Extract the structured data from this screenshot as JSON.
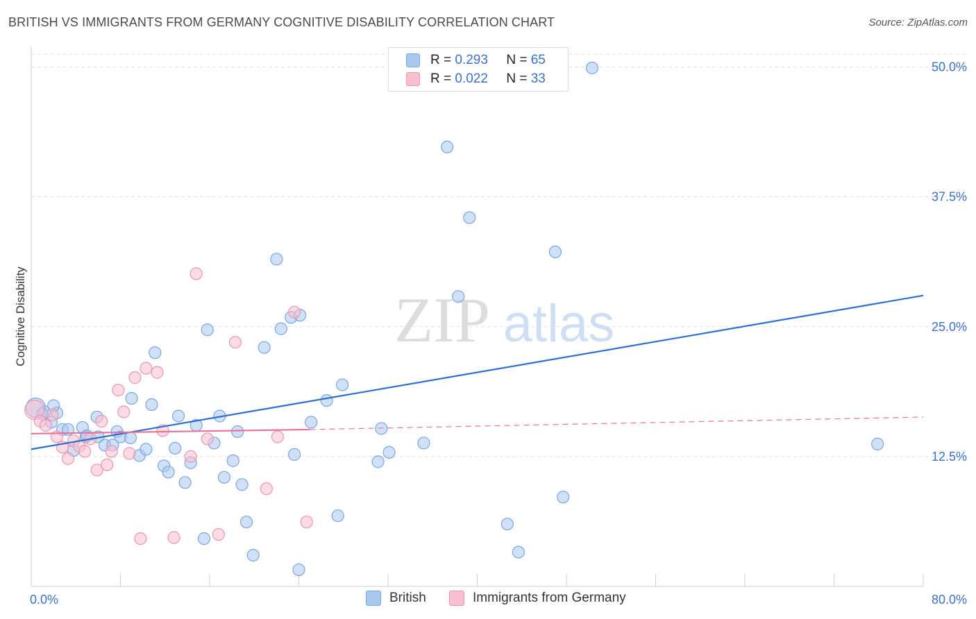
{
  "header": {
    "title": "BRITISH VS IMMIGRANTS FROM GERMANY COGNITIVE DISABILITY CORRELATION CHART",
    "source": "Source: ZipAtlas.com"
  },
  "legend_stats": [
    {
      "r_label": "R = ",
      "r_value": "0.293",
      "n_label": "N = ",
      "n_value": "65"
    },
    {
      "r_label": "R = ",
      "r_value": "0.022",
      "n_label": "N = ",
      "n_value": "33"
    }
  ],
  "watermark": {
    "zip": "ZIP",
    "atlas": "atlas"
  },
  "colors": {
    "british_fill": "#a9c8f0",
    "british_stroke": "#7aa6e0",
    "british_line": "#2a6fd0",
    "germany_fill": "#f7bfd0",
    "germany_stroke": "#ee93b0",
    "germany_line": "#e8709a",
    "axis_label": "#3a70c8",
    "grid": "#dde1e6"
  },
  "chart_data": {
    "type": "scatter",
    "title": "BRITISH VS IMMIGRANTS FROM GERMANY COGNITIVE DISABILITY CORRELATION CHART",
    "xlabel": "",
    "ylabel": "Cognitive Disability",
    "xlim": [
      0,
      80
    ],
    "ylim": [
      0,
      50
    ],
    "x_tick_labels": [
      "0.0%",
      "80.0%"
    ],
    "y_ticks": [
      12.5,
      25.0,
      37.5,
      50.0
    ],
    "y_tick_labels": [
      "12.5%",
      "25.0%",
      "37.5%",
      "50.0%"
    ],
    "grid": "horizontal dashed",
    "legend_position": "bottom",
    "series": [
      {
        "name": "British",
        "color": "#a9c8f0",
        "points": [
          [
            0.4,
            17.2
          ],
          [
            1.2,
            16.8
          ],
          [
            2.3,
            16.7
          ],
          [
            1.8,
            15.8
          ],
          [
            2.8,
            15.1
          ],
          [
            3.3,
            15.1
          ],
          [
            4.6,
            15.3
          ],
          [
            5.9,
            16.3
          ],
          [
            6.0,
            14.4
          ],
          [
            4.9,
            14.4
          ],
          [
            3.8,
            13.1
          ],
          [
            6.6,
            13.6
          ],
          [
            7.3,
            13.6
          ],
          [
            7.7,
            14.9
          ],
          [
            8.0,
            14.4
          ],
          [
            8.9,
            14.3
          ],
          [
            9.0,
            18.1
          ],
          [
            9.7,
            12.6
          ],
          [
            10.3,
            13.2
          ],
          [
            10.8,
            17.5
          ],
          [
            11.1,
            22.5
          ],
          [
            11.9,
            11.6
          ],
          [
            12.3,
            11.0
          ],
          [
            12.9,
            13.3
          ],
          [
            13.2,
            16.4
          ],
          [
            13.8,
            10.0
          ],
          [
            14.3,
            11.9
          ],
          [
            14.8,
            15.5
          ],
          [
            15.5,
            4.6
          ],
          [
            15.8,
            24.7
          ],
          [
            16.4,
            13.8
          ],
          [
            16.9,
            16.4
          ],
          [
            17.3,
            10.5
          ],
          [
            18.1,
            12.1
          ],
          [
            18.5,
            14.9
          ],
          [
            18.9,
            9.8
          ],
          [
            19.3,
            6.2
          ],
          [
            19.9,
            3.0
          ],
          [
            20.9,
            23.0
          ],
          [
            22.0,
            31.5
          ],
          [
            22.4,
            24.8
          ],
          [
            23.3,
            25.9
          ],
          [
            24.1,
            26.1
          ],
          [
            23.6,
            12.7
          ],
          [
            24.0,
            1.6
          ],
          [
            25.1,
            15.8
          ],
          [
            26.5,
            17.9
          ],
          [
            27.5,
            6.8
          ],
          [
            27.9,
            19.4
          ],
          [
            31.1,
            12.0
          ],
          [
            31.4,
            15.2
          ],
          [
            32.1,
            12.9
          ],
          [
            35.2,
            13.8
          ],
          [
            37.3,
            42.3
          ],
          [
            38.3,
            27.9
          ],
          [
            39.3,
            35.5
          ],
          [
            42.7,
            6.0
          ],
          [
            43.7,
            3.3
          ],
          [
            47.0,
            32.2
          ],
          [
            47.7,
            8.6
          ],
          [
            50.3,
            49.9
          ],
          [
            75.9,
            13.7
          ],
          [
            5.0,
            14.5
          ],
          [
            2.0,
            17.4
          ],
          [
            1.0,
            16.6
          ]
        ],
        "trend": {
          "x": [
            0,
            80
          ],
          "y": [
            13.2,
            28.0
          ]
        }
      },
      {
        "name": "Immigrants from Germany",
        "color": "#f7bfd0",
        "points": [
          [
            0.3,
            17.0
          ],
          [
            0.8,
            15.9
          ],
          [
            1.3,
            15.5
          ],
          [
            1.9,
            16.5
          ],
          [
            2.3,
            14.4
          ],
          [
            2.8,
            13.4
          ],
          [
            3.3,
            12.3
          ],
          [
            3.8,
            14.0
          ],
          [
            4.3,
            13.5
          ],
          [
            4.8,
            13.0
          ],
          [
            5.3,
            14.2
          ],
          [
            5.9,
            11.2
          ],
          [
            6.3,
            15.9
          ],
          [
            6.8,
            11.7
          ],
          [
            7.2,
            13.0
          ],
          [
            7.8,
            18.9
          ],
          [
            8.3,
            16.8
          ],
          [
            8.8,
            12.8
          ],
          [
            9.3,
            20.1
          ],
          [
            9.8,
            4.6
          ],
          [
            10.3,
            21.0
          ],
          [
            11.3,
            20.6
          ],
          [
            11.8,
            15.0
          ],
          [
            12.8,
            4.7
          ],
          [
            14.3,
            12.5
          ],
          [
            14.8,
            30.1
          ],
          [
            15.8,
            14.2
          ],
          [
            16.8,
            5.0
          ],
          [
            18.3,
            23.5
          ],
          [
            21.1,
            9.4
          ],
          [
            22.1,
            14.4
          ],
          [
            23.6,
            26.4
          ],
          [
            24.7,
            6.2
          ]
        ],
        "trend": {
          "x": [
            0,
            25
          ],
          "y": [
            14.7,
            15.1
          ]
        },
        "trend_extension": {
          "x": [
            25,
            80
          ],
          "y": [
            15.1,
            16.3
          ]
        }
      }
    ]
  },
  "bottom_legend": [
    {
      "label": "British"
    },
    {
      "label": "Immigrants from Germany"
    }
  ]
}
